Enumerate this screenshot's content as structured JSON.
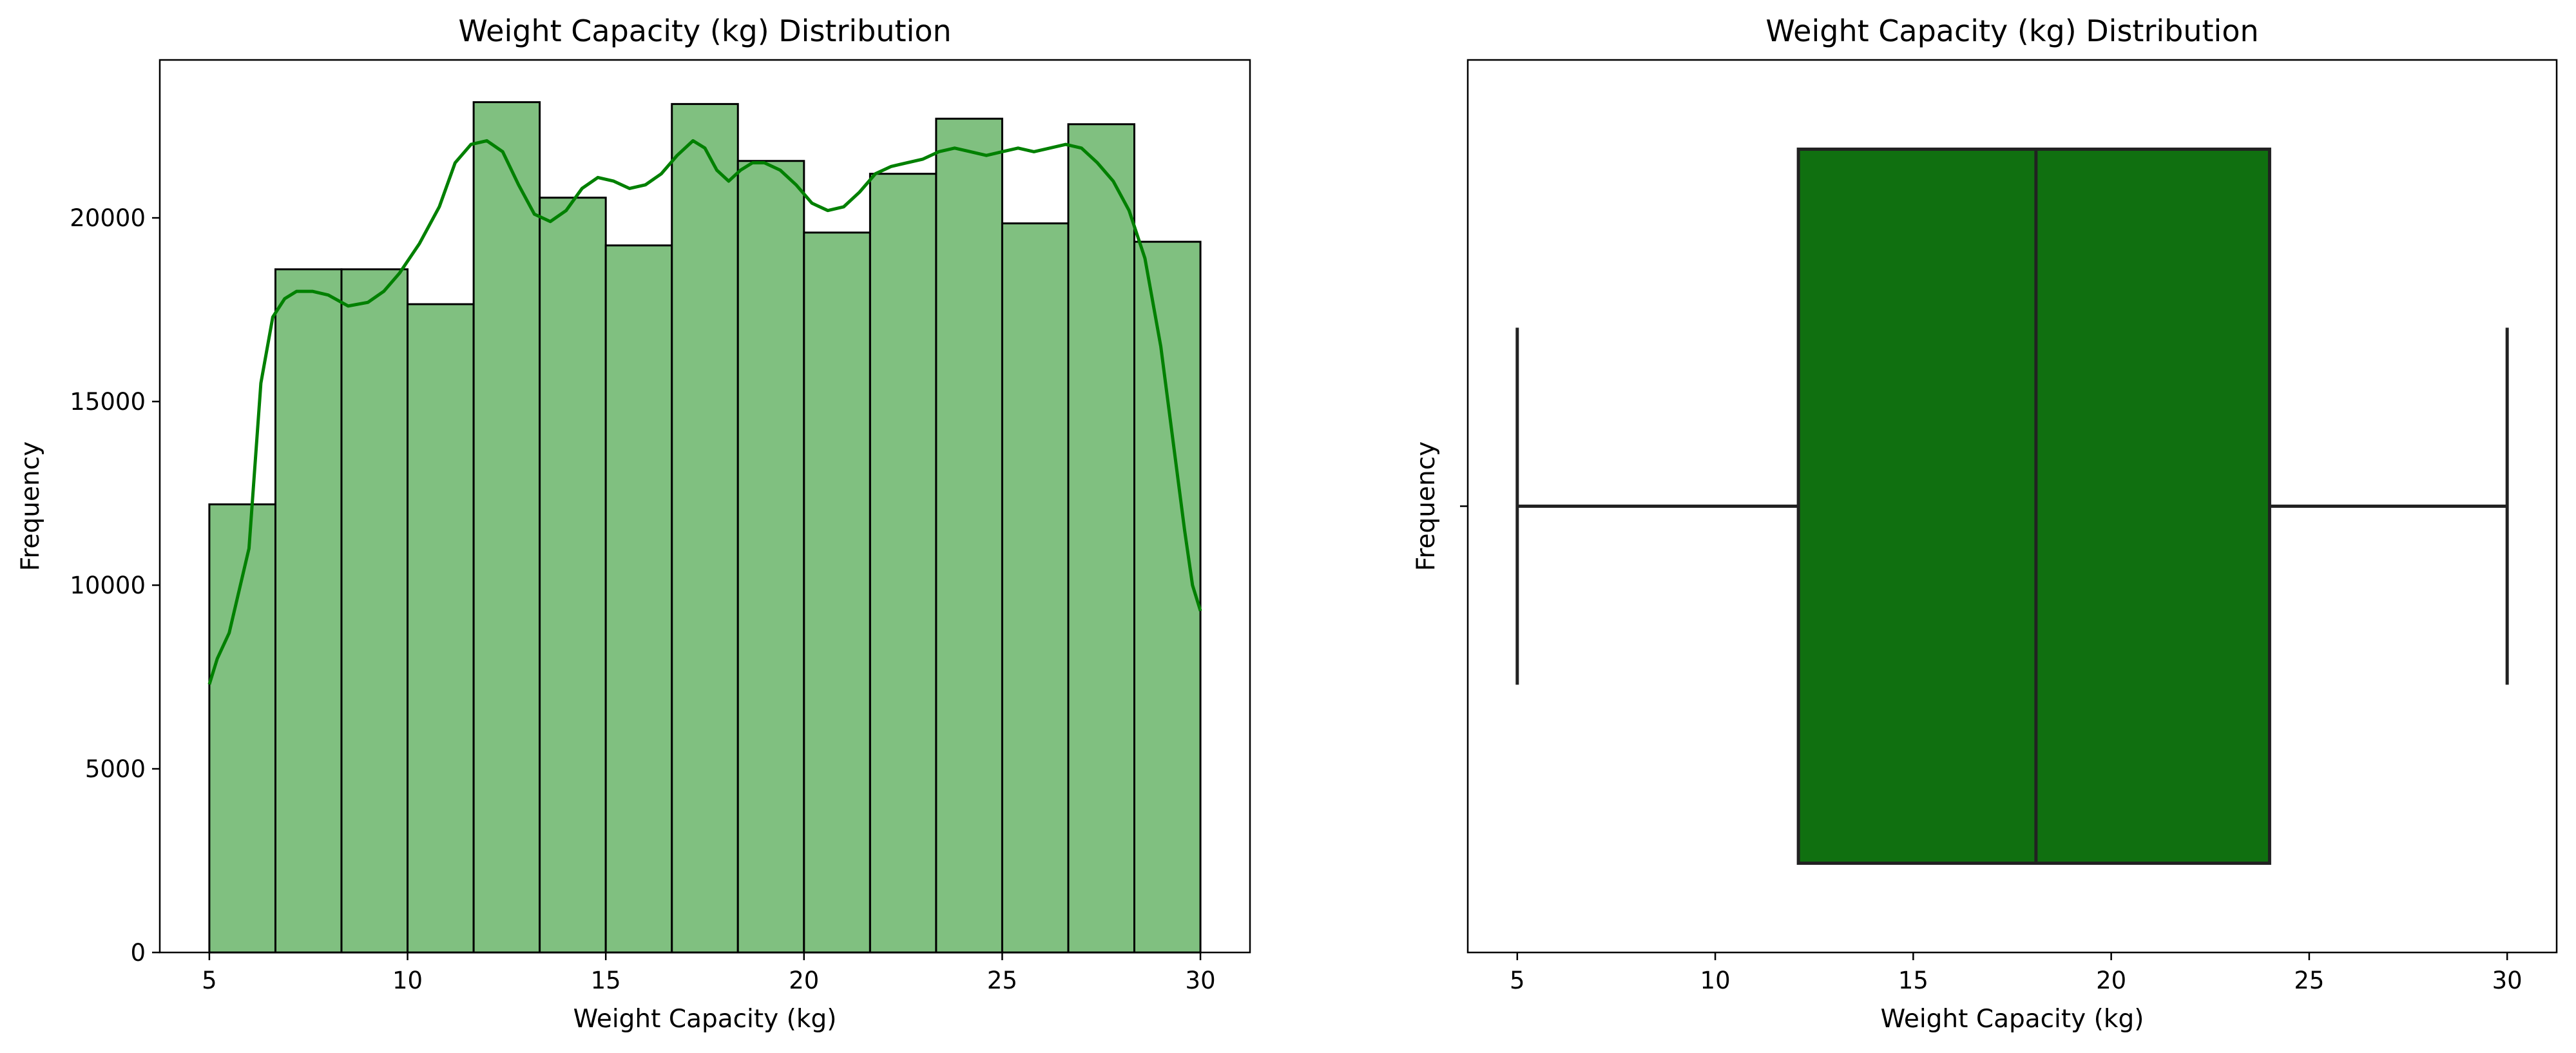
{
  "colors": {
    "hist_fill": "#80c080",
    "hist_edge": "#000000",
    "kde_line": "#008000",
    "box_fill": "#107010",
    "box_edge": "#222222"
  },
  "chart_data": [
    {
      "type": "histogram",
      "title": "Weight Capacity (kg) Distribution",
      "xlabel": "Weight Capacity (kg)",
      "ylabel": "Frequency",
      "xlim": [
        3.75,
        31.25
      ],
      "ylim": [
        0,
        24300
      ],
      "x_ticks": [
        5,
        10,
        15,
        20,
        25,
        30
      ],
      "y_ticks": [
        0,
        5000,
        10000,
        15000,
        20000
      ],
      "grid": false,
      "bins": [
        {
          "x0": 5.0,
          "x1": 6.667,
          "count": 12200
        },
        {
          "x0": 6.667,
          "x1": 8.333,
          "count": 18600
        },
        {
          "x0": 8.333,
          "x1": 10.0,
          "count": 18600
        },
        {
          "x0": 10.0,
          "x1": 11.667,
          "count": 17650
        },
        {
          "x0": 11.667,
          "x1": 13.333,
          "count": 23150
        },
        {
          "x0": 13.333,
          "x1": 15.0,
          "count": 20550
        },
        {
          "x0": 15.0,
          "x1": 16.667,
          "count": 19250
        },
        {
          "x0": 16.667,
          "x1": 18.333,
          "count": 23100
        },
        {
          "x0": 18.333,
          "x1": 20.0,
          "count": 21550
        },
        {
          "x0": 20.0,
          "x1": 21.667,
          "count": 19600
        },
        {
          "x0": 21.667,
          "x1": 23.333,
          "count": 21200
        },
        {
          "x0": 23.333,
          "x1": 25.0,
          "count": 22700
        },
        {
          "x0": 25.0,
          "x1": 26.667,
          "count": 19850
        },
        {
          "x0": 26.667,
          "x1": 28.333,
          "count": 22550
        },
        {
          "x0": 28.333,
          "x1": 30.0,
          "count": 19350
        }
      ],
      "kde": {
        "x": [
          5.0,
          5.2,
          5.5,
          6.0,
          6.3,
          6.6,
          6.9,
          7.2,
          7.6,
          8.0,
          8.5,
          9.0,
          9.4,
          9.8,
          10.3,
          10.8,
          11.2,
          11.6,
          12.0,
          12.4,
          12.8,
          13.2,
          13.6,
          14.0,
          14.4,
          14.8,
          15.2,
          15.6,
          16.0,
          16.4,
          16.8,
          17.2,
          17.5,
          17.8,
          18.1,
          18.4,
          18.7,
          19.0,
          19.4,
          19.8,
          20.2,
          20.6,
          21.0,
          21.4,
          21.8,
          22.2,
          22.6,
          23.0,
          23.4,
          23.8,
          24.2,
          24.6,
          25.0,
          25.4,
          25.8,
          26.2,
          26.6,
          27.0,
          27.4,
          27.8,
          28.2,
          28.6,
          29.0,
          29.3,
          29.6,
          29.8,
          30.0
        ],
        "y": [
          7300,
          8000,
          8700,
          11000,
          15500,
          17300,
          17800,
          18000,
          18000,
          17900,
          17600,
          17700,
          18000,
          18500,
          19300,
          20300,
          21500,
          22000,
          22100,
          21800,
          20900,
          20100,
          19900,
          20200,
          20800,
          21100,
          21000,
          20800,
          20900,
          21200,
          21700,
          22100,
          21900,
          21300,
          21000,
          21300,
          21500,
          21500,
          21300,
          20900,
          20400,
          20200,
          20300,
          20700,
          21200,
          21400,
          21500,
          21600,
          21800,
          21900,
          21800,
          21700,
          21800,
          21900,
          21800,
          21900,
          22000,
          21900,
          21500,
          21000,
          20200,
          18900,
          16500,
          14000,
          11500,
          10000,
          9300
        ]
      }
    },
    {
      "type": "box",
      "title": "Weight Capacity (kg) Distribution",
      "xlabel": "Weight Capacity (kg)",
      "ylabel": "Frequency",
      "xlim": [
        3.75,
        31.25
      ],
      "x_ticks": [
        5,
        10,
        15,
        20,
        25,
        30
      ],
      "grid": false,
      "min": 5.0,
      "q1": 12.1,
      "median": 18.1,
      "q3": 24.0,
      "max": 30.0
    }
  ]
}
